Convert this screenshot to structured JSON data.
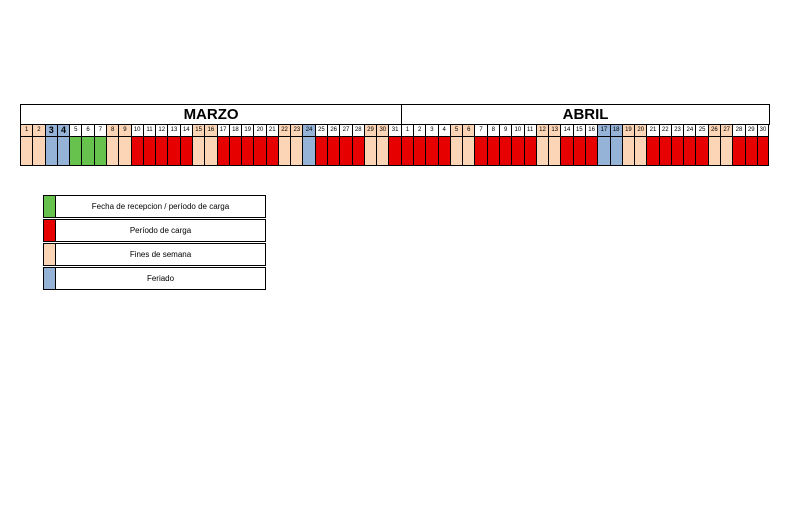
{
  "colors": {
    "carga": "#e60000",
    "weekend": "#fbd5b5",
    "feriado": "#95b3d7",
    "recepcion": "#66c24d",
    "empty": "#ffffff"
  },
  "months": [
    {
      "name": "MARZO",
      "days": [
        {
          "n": "1",
          "t": "weekend"
        },
        {
          "n": "2",
          "t": "weekend"
        },
        {
          "n": "3",
          "t": "feriado"
        },
        {
          "n": "4",
          "t": "feriado"
        },
        {
          "n": "5",
          "t": "recepcion"
        },
        {
          "n": "6",
          "t": "recepcion"
        },
        {
          "n": "7",
          "t": "recepcion"
        },
        {
          "n": "8",
          "t": "weekend"
        },
        {
          "n": "9",
          "t": "weekend"
        },
        {
          "n": "10",
          "t": "carga"
        },
        {
          "n": "11",
          "t": "carga"
        },
        {
          "n": "12",
          "t": "carga"
        },
        {
          "n": "13",
          "t": "carga"
        },
        {
          "n": "14",
          "t": "carga"
        },
        {
          "n": "15",
          "t": "weekend"
        },
        {
          "n": "16",
          "t": "weekend"
        },
        {
          "n": "17",
          "t": "carga"
        },
        {
          "n": "18",
          "t": "carga"
        },
        {
          "n": "19",
          "t": "carga"
        },
        {
          "n": "20",
          "t": "carga"
        },
        {
          "n": "21",
          "t": "carga"
        },
        {
          "n": "22",
          "t": "weekend"
        },
        {
          "n": "23",
          "t": "weekend"
        },
        {
          "n": "24",
          "t": "feriado"
        },
        {
          "n": "25",
          "t": "carga"
        },
        {
          "n": "26",
          "t": "carga"
        },
        {
          "n": "27",
          "t": "carga"
        },
        {
          "n": "28",
          "t": "carga"
        },
        {
          "n": "29",
          "t": "weekend"
        },
        {
          "n": "30",
          "t": "weekend"
        },
        {
          "n": "31",
          "t": "carga"
        }
      ]
    },
    {
      "name": "ABRIL",
      "days": [
        {
          "n": "1",
          "t": "carga"
        },
        {
          "n": "2",
          "t": "carga"
        },
        {
          "n": "3",
          "t": "carga"
        },
        {
          "n": "4",
          "t": "carga"
        },
        {
          "n": "5",
          "t": "weekend"
        },
        {
          "n": "6",
          "t": "weekend"
        },
        {
          "n": "7",
          "t": "carga"
        },
        {
          "n": "8",
          "t": "carga"
        },
        {
          "n": "9",
          "t": "carga"
        },
        {
          "n": "10",
          "t": "carga"
        },
        {
          "n": "11",
          "t": "carga"
        },
        {
          "n": "12",
          "t": "weekend"
        },
        {
          "n": "13",
          "t": "weekend"
        },
        {
          "n": "14",
          "t": "carga"
        },
        {
          "n": "15",
          "t": "carga"
        },
        {
          "n": "16",
          "t": "carga"
        },
        {
          "n": "17",
          "t": "feriado"
        },
        {
          "n": "18",
          "t": "feriado"
        },
        {
          "n": "19",
          "t": "weekend"
        },
        {
          "n": "20",
          "t": "weekend"
        },
        {
          "n": "21",
          "t": "carga"
        },
        {
          "n": "22",
          "t": "carga"
        },
        {
          "n": "23",
          "t": "carga"
        },
        {
          "n": "24",
          "t": "carga"
        },
        {
          "n": "25",
          "t": "carga"
        },
        {
          "n": "26",
          "t": "weekend"
        },
        {
          "n": "27",
          "t": "weekend"
        },
        {
          "n": "28",
          "t": "carga"
        },
        {
          "n": "29",
          "t": "carga"
        },
        {
          "n": "30",
          "t": "carga"
        }
      ]
    }
  ],
  "legend": [
    {
      "color": "recepcion",
      "label": "Fecha de recepcion / período de carga"
    },
    {
      "color": "carga",
      "label": "Período de carga"
    },
    {
      "color": "weekend",
      "label": "Fines de semana"
    },
    {
      "color": "feriado",
      "label": "Feriado"
    }
  ]
}
